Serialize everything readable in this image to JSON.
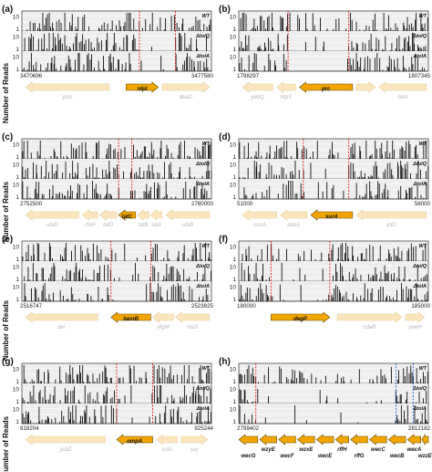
{
  "figure": {
    "y_axis_label": "Number of Reads",
    "y_ticks": [
      "10",
      "1"
    ]
  },
  "colors": {
    "highlight_gene": "#f0a500",
    "highlight_gene_stroke": "#6b4a00",
    "other_gene": "#fbe5bd",
    "other_gene_stroke": "#e6cf9c",
    "bar": "#111111",
    "panel_bg": "#eeeeee",
    "grid": "#ffffff",
    "marker_red": "#e31a1c",
    "marker_blue": "#1f62c8"
  },
  "chart_data": [
    {
      "panel": "(a)",
      "type": "bar",
      "scale": "log",
      "grid": true,
      "strains": [
        "WT",
        "ΔtolQ",
        "ΔtolA"
      ],
      "x_range": [
        "3470696",
        "3477580"
      ],
      "markers": [
        {
          "pos": 0.62,
          "color": "red"
        },
        {
          "pos": 0.81,
          "color": "red"
        }
      ],
      "genes": [
        {
          "name": "pnp",
          "dir": "left",
          "highlight": false,
          "start": 0.02,
          "end": 0.46
        },
        {
          "name": "nlpI",
          "dir": "right",
          "highlight": true,
          "start": 0.55,
          "end": 0.72
        },
        {
          "name": "deaD",
          "dir": "right",
          "highlight": false,
          "start": 0.74,
          "end": 0.99
        }
      ]
    },
    {
      "panel": "(b)",
      "type": "bar",
      "scale": "log",
      "grid": true,
      "strains": [
        "WT",
        "ΔtolQ",
        "ΔtolA"
      ],
      "x_range": [
        "1798297",
        "1807345"
      ],
      "markers": [
        {
          "pos": 0.26,
          "color": "red"
        },
        {
          "pos": 0.58,
          "color": "red"
        }
      ],
      "genes": [
        {
          "name": "yebQ",
          "dir": "left",
          "highlight": false,
          "start": 0.02,
          "end": 0.18
        },
        {
          "name": "htpX",
          "dir": "left",
          "highlight": false,
          "start": 0.2,
          "end": 0.3
        },
        {
          "name": "prc",
          "dir": "left",
          "highlight": true,
          "start": 0.32,
          "end": 0.6
        },
        {
          "name": "",
          "dir": "right",
          "highlight": false,
          "start": 0.62,
          "end": 0.72
        },
        {
          "name": "tatA",
          "dir": "left",
          "highlight": false,
          "start": 0.74,
          "end": 0.99
        }
      ]
    },
    {
      "panel": "(c)",
      "type": "bar",
      "scale": "log",
      "grid": true,
      "strains": [
        "WT",
        "ΔtolQ",
        "ΔtolA"
      ],
      "x_range": [
        "2752500",
        "2760000"
      ],
      "markers": [
        {
          "pos": 0.51,
          "color": "red"
        },
        {
          "pos": 0.58,
          "color": "red"
        }
      ],
      "genes": [
        {
          "name": "ubiD",
          "dir": "left",
          "highlight": false,
          "start": 0.02,
          "end": 0.3
        },
        {
          "name": "rfaH",
          "dir": "left",
          "highlight": false,
          "start": 0.32,
          "end": 0.4
        },
        {
          "name": "tatD",
          "dir": "left",
          "highlight": false,
          "start": 0.41,
          "end": 0.5
        },
        {
          "name": "tatC",
          "dir": "left",
          "highlight": true,
          "start": 0.51,
          "end": 0.6
        },
        {
          "name": "tatB",
          "dir": "left",
          "highlight": false,
          "start": 0.61,
          "end": 0.67
        },
        {
          "name": "tatA",
          "dir": "left",
          "highlight": false,
          "start": 0.68,
          "end": 0.74
        },
        {
          "name": "ubiB",
          "dir": "left",
          "highlight": false,
          "start": 0.76,
          "end": 0.99
        }
      ]
    },
    {
      "panel": "(d)",
      "type": "bar",
      "scale": "log",
      "grid": true,
      "strains": [
        "WT",
        "ΔtolQ",
        "ΔtolA"
      ],
      "x_range": [
        "51000",
        "58000"
      ],
      "markers": [
        {
          "pos": 0.34,
          "color": "red"
        },
        {
          "pos": 0.58,
          "color": "red"
        }
      ],
      "genes": [
        {
          "name": "rsmA",
          "dir": "left",
          "highlight": false,
          "start": 0.02,
          "end": 0.2
        },
        {
          "name": "pdxA",
          "dir": "left",
          "highlight": false,
          "start": 0.22,
          "end": 0.36
        },
        {
          "name": "surA",
          "dir": "left",
          "highlight": true,
          "start": 0.38,
          "end": 0.6
        },
        {
          "name": "lptD",
          "dir": "left",
          "highlight": false,
          "start": 0.62,
          "end": 0.99
        }
      ]
    },
    {
      "panel": "(e)",
      "type": "bar",
      "scale": "log",
      "grid": true,
      "strains": [
        "WT",
        "ΔtolQ",
        "ΔtolA"
      ],
      "x_range": [
        "2516747",
        "2523925"
      ],
      "markers": [
        {
          "pos": 0.47,
          "color": "red"
        },
        {
          "pos": 0.68,
          "color": "red"
        }
      ],
      "genes": [
        {
          "name": "der",
          "dir": "left",
          "highlight": false,
          "start": 0.02,
          "end": 0.4
        },
        {
          "name": "bamB",
          "dir": "left",
          "highlight": true,
          "start": 0.47,
          "end": 0.68
        },
        {
          "name": "yfgM",
          "dir": "left",
          "highlight": false,
          "start": 0.69,
          "end": 0.8
        },
        {
          "name": "hisS",
          "dir": "left",
          "highlight": false,
          "start": 0.81,
          "end": 0.99
        }
      ]
    },
    {
      "panel": "(f)",
      "type": "bar",
      "scale": "log",
      "grid": true,
      "strains": [
        "WT",
        "ΔtolQ",
        "ΔtolA"
      ],
      "x_range": [
        "180000",
        "185000"
      ],
      "markers": [
        {
          "pos": 0.17,
          "color": "red"
        },
        {
          "pos": 0.48,
          "color": "red"
        }
      ],
      "genes": [
        {
          "name": "degP",
          "dir": "right",
          "highlight": true,
          "start": 0.17,
          "end": 0.48
        },
        {
          "name": "cdaR",
          "dir": "right",
          "highlight": false,
          "start": 0.52,
          "end": 0.86
        },
        {
          "name": "yaeH",
          "dir": "right",
          "highlight": false,
          "start": 0.88,
          "end": 0.98
        }
      ]
    },
    {
      "panel": "(g)",
      "type": "bar",
      "scale": "log",
      "grid": true,
      "strains": [
        "WT",
        "ΔtolQ",
        "ΔtolA"
      ],
      "x_range": [
        "918204",
        "925244"
      ],
      "markers": [
        {
          "pos": 0.5,
          "color": "red"
        },
        {
          "pos": 0.69,
          "color": "red"
        }
      ],
      "genes": [
        {
          "name": "ycbZ",
          "dir": "left",
          "highlight": false,
          "start": 0.02,
          "end": 0.44
        },
        {
          "name": "ompA",
          "dir": "left",
          "highlight": true,
          "start": 0.5,
          "end": 0.69
        },
        {
          "name": "sulA",
          "dir": "left",
          "highlight": false,
          "start": 0.71,
          "end": 0.82
        },
        {
          "name": "sxy",
          "dir": "right",
          "highlight": false,
          "start": 0.84,
          "end": 0.98
        }
      ]
    },
    {
      "panel": "(h)",
      "type": "bar",
      "scale": "log",
      "grid": true,
      "strains": [
        "WT",
        "ΔtolQ",
        "ΔtolA"
      ],
      "x_range": [
        "2799402",
        "2812182"
      ],
      "markers": [
        {
          "pos": 0.09,
          "color": "red"
        },
        {
          "pos": 0.83,
          "color": "blue"
        },
        {
          "pos": 0.92,
          "color": "blue"
        }
      ],
      "genes": [
        {
          "name": "wecG",
          "dir": "left",
          "highlight": true,
          "start": 0.0,
          "end": 0.1
        },
        {
          "name": "wzyE",
          "dir": "left",
          "highlight": true,
          "start": 0.11,
          "end": 0.2
        },
        {
          "name": "wecF",
          "dir": "left",
          "highlight": true,
          "start": 0.21,
          "end": 0.3
        },
        {
          "name": "wzxE",
          "dir": "left",
          "highlight": true,
          "start": 0.31,
          "end": 0.4
        },
        {
          "name": "wecE",
          "dir": "left",
          "highlight": true,
          "start": 0.41,
          "end": 0.5
        },
        {
          "name": "rffH",
          "dir": "left",
          "highlight": true,
          "start": 0.51,
          "end": 0.58
        },
        {
          "name": "rffG",
          "dir": "left",
          "highlight": true,
          "start": 0.59,
          "end": 0.68
        },
        {
          "name": "wecC",
          "dir": "left",
          "highlight": true,
          "start": 0.69,
          "end": 0.78
        },
        {
          "name": "wecB",
          "dir": "left",
          "highlight": true,
          "start": 0.79,
          "end": 0.88
        },
        {
          "name": "wecA",
          "dir": "left",
          "highlight": true,
          "start": 0.89,
          "end": 0.96
        },
        {
          "name": "wzzE",
          "dir": "left",
          "highlight": true,
          "start": 0.965,
          "end": 1.0
        }
      ]
    }
  ]
}
